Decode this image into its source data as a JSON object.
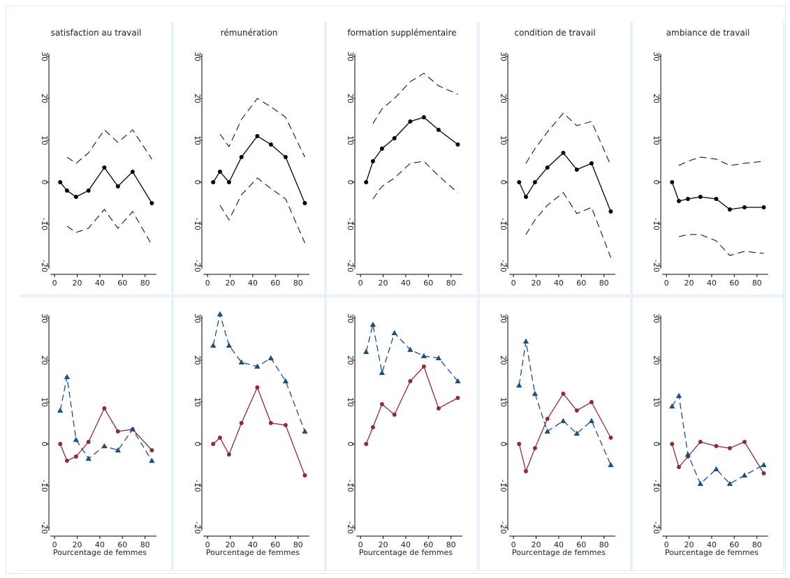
{
  "colors": {
    "black_series": "#000000",
    "red_series": "#8e2a3a",
    "blue_series": "#1f4e79",
    "frame_background": "#eaf1f5",
    "plot_background": "#ffffff"
  },
  "x_ticks": [
    "0",
    "20",
    "40",
    "60",
    "80"
  ],
  "y_ticks": [
    "-20",
    "-10",
    "0",
    "10",
    "20",
    "30"
  ],
  "xlabel": "Pourcentage de femmes",
  "chart_data": [
    {
      "type": "line",
      "row": 1,
      "title": "satisfaction au travail",
      "xlim": [
        -5,
        95
      ],
      "ylim": [
        -20,
        30
      ],
      "series": [
        {
          "style": "solid-markers",
          "color": "#000000",
          "x": [
            5,
            11,
            19,
            30,
            44,
            56,
            69,
            86
          ],
          "y": [
            0,
            -2,
            -3.5,
            -2,
            3.5,
            -1,
            2.5,
            -5
          ]
        },
        {
          "style": "dashed",
          "color": "#000000",
          "x": [
            11,
            19,
            30,
            44,
            56,
            69,
            86
          ],
          "y": [
            6,
            4.5,
            7,
            12.5,
            9.5,
            12.5,
            5.5
          ]
        },
        {
          "style": "dashed",
          "color": "#000000",
          "x": [
            11,
            19,
            30,
            44,
            56,
            69,
            86
          ],
          "y": [
            -10.5,
            -12,
            -11,
            -6.5,
            -11,
            -7,
            -15
          ]
        }
      ]
    },
    {
      "type": "line",
      "row": 1,
      "title": "rémunération",
      "xlim": [
        -5,
        95
      ],
      "ylim": [
        -20,
        30
      ],
      "series": [
        {
          "style": "solid-markers",
          "color": "#000000",
          "x": [
            5,
            11,
            19,
            30,
            44,
            56,
            69,
            86
          ],
          "y": [
            0,
            2.5,
            0,
            6,
            11,
            9,
            6,
            -5
          ]
        },
        {
          "style": "dashed",
          "color": "#000000",
          "x": [
            11,
            19,
            30,
            44,
            56,
            69,
            86
          ],
          "y": [
            11.5,
            8.5,
            15,
            20,
            18,
            15.5,
            6
          ]
        },
        {
          "style": "dashed",
          "color": "#000000",
          "x": [
            11,
            19,
            30,
            44,
            56,
            69,
            86
          ],
          "y": [
            -5.5,
            -9,
            -3,
            1,
            -1.5,
            -4,
            -14.5
          ]
        }
      ]
    },
    {
      "type": "line",
      "row": 1,
      "title": "formation supplémentaire",
      "xlim": [
        -5,
        95
      ],
      "ylim": [
        -20,
        30
      ],
      "series": [
        {
          "style": "solid-markers",
          "color": "#000000",
          "x": [
            5,
            11,
            19,
            30,
            44,
            56,
            69,
            86
          ],
          "y": [
            0,
            5,
            8,
            10.5,
            14.5,
            15.5,
            12.5,
            9
          ]
        },
        {
          "style": "dashed",
          "color": "#000000",
          "x": [
            11,
            19,
            30,
            44,
            56,
            69,
            86
          ],
          "y": [
            14,
            17.5,
            20,
            24,
            26,
            23,
            21
          ]
        },
        {
          "style": "dashed",
          "color": "#000000",
          "x": [
            11,
            19,
            30,
            44,
            56,
            69,
            86
          ],
          "y": [
            -4,
            -1,
            1,
            4.5,
            5,
            1.5,
            -2.5
          ]
        }
      ]
    },
    {
      "type": "line",
      "row": 1,
      "title": "condition de travail",
      "xlim": [
        -5,
        95
      ],
      "ylim": [
        -20,
        30
      ],
      "series": [
        {
          "style": "solid-markers",
          "color": "#000000",
          "x": [
            5,
            11,
            19,
            30,
            44,
            56,
            69,
            86
          ],
          "y": [
            0,
            -3.5,
            0,
            3.5,
            7,
            3,
            4.5,
            -7
          ]
        },
        {
          "style": "dashed",
          "color": "#000000",
          "x": [
            11,
            19,
            30,
            44,
            56,
            69,
            86
          ],
          "y": [
            4.5,
            8,
            12,
            16.5,
            13.5,
            14.5,
            4
          ]
        },
        {
          "style": "dashed",
          "color": "#000000",
          "x": [
            11,
            19,
            30,
            44,
            56,
            69,
            86
          ],
          "y": [
            -12.5,
            -9,
            -5.5,
            -2.5,
            -7.5,
            -6,
            -18
          ]
        }
      ]
    },
    {
      "type": "line",
      "row": 1,
      "title": "ambiance de travail",
      "xlim": [
        -5,
        95
      ],
      "ylim": [
        -20,
        30
      ],
      "series": [
        {
          "style": "solid-markers",
          "color": "#000000",
          "x": [
            5,
            11,
            19,
            30,
            44,
            56,
            69,
            86
          ],
          "y": [
            0,
            -4.5,
            -4,
            -3.5,
            -4,
            -6.5,
            -6,
            -6
          ]
        },
        {
          "style": "dashed",
          "color": "#000000",
          "x": [
            11,
            19,
            30,
            44,
            56,
            69,
            86
          ],
          "y": [
            4,
            5,
            6,
            5.5,
            4,
            4.5,
            5
          ]
        },
        {
          "style": "dashed",
          "color": "#000000",
          "x": [
            11,
            19,
            30,
            44,
            56,
            69,
            86
          ],
          "y": [
            -13,
            -12.5,
            -12.5,
            -14,
            -17.5,
            -16.5,
            -17
          ]
        }
      ]
    },
    {
      "type": "line",
      "row": 2,
      "title": "",
      "xlim": [
        -5,
        95
      ],
      "ylim": [
        -20,
        30
      ],
      "series": [
        {
          "style": "red-circles",
          "color": "#8e2a3a",
          "x": [
            5,
            11,
            19,
            30,
            44,
            56,
            69,
            86
          ],
          "y": [
            0,
            -4,
            -3,
            0.5,
            8.5,
            3,
            3.5,
            -1.5
          ]
        },
        {
          "style": "blue-triangles",
          "color": "#1f4e79",
          "x": [
            5,
            11,
            19,
            30,
            44,
            56,
            69,
            86
          ],
          "y": [
            8,
            16,
            1,
            -3.5,
            -0.5,
            -1.5,
            3.5,
            -4
          ]
        }
      ]
    },
    {
      "type": "line",
      "row": 2,
      "title": "",
      "xlim": [
        -5,
        95
      ],
      "ylim": [
        -20,
        30
      ],
      "series": [
        {
          "style": "red-circles",
          "color": "#8e2a3a",
          "x": [
            5,
            11,
            19,
            30,
            44,
            56,
            69,
            86
          ],
          "y": [
            0,
            1.5,
            -2.5,
            5,
            13.5,
            5,
            4.5,
            -7.5
          ]
        },
        {
          "style": "blue-triangles",
          "color": "#1f4e79",
          "x": [
            5,
            11,
            19,
            30,
            44,
            56,
            69,
            86
          ],
          "y": [
            23.5,
            31,
            23.5,
            19.5,
            18.5,
            20.5,
            15,
            3
          ]
        }
      ]
    },
    {
      "type": "line",
      "row": 2,
      "title": "",
      "xlim": [
        -5,
        95
      ],
      "ylim": [
        -20,
        30
      ],
      "series": [
        {
          "style": "red-circles",
          "color": "#8e2a3a",
          "x": [
            5,
            11,
            19,
            30,
            44,
            56,
            69,
            86
          ],
          "y": [
            0,
            4,
            9.5,
            7,
            15,
            18.5,
            8.5,
            11
          ]
        },
        {
          "style": "blue-triangles",
          "color": "#1f4e79",
          "x": [
            5,
            11,
            19,
            30,
            44,
            56,
            69,
            86
          ],
          "y": [
            22,
            28.5,
            17,
            26.5,
            22.5,
            21,
            20.5,
            15
          ]
        }
      ]
    },
    {
      "type": "line",
      "row": 2,
      "title": "",
      "xlim": [
        -5,
        95
      ],
      "ylim": [
        -20,
        30
      ],
      "series": [
        {
          "style": "red-circles",
          "color": "#8e2a3a",
          "x": [
            5,
            11,
            19,
            30,
            44,
            56,
            69,
            86
          ],
          "y": [
            0,
            -6.5,
            -1,
            6,
            12,
            8,
            10,
            1.5
          ]
        },
        {
          "style": "blue-triangles",
          "color": "#1f4e79",
          "x": [
            5,
            11,
            19,
            30,
            44,
            56,
            69,
            86
          ],
          "y": [
            14,
            24.5,
            12,
            3,
            5.5,
            2.5,
            5.5,
            -5
          ]
        }
      ]
    },
    {
      "type": "line",
      "row": 2,
      "title": "",
      "xlim": [
        -5,
        95
      ],
      "ylim": [
        -20,
        30
      ],
      "series": [
        {
          "style": "red-circles",
          "color": "#8e2a3a",
          "x": [
            5,
            11,
            19,
            30,
            44,
            56,
            69,
            86
          ],
          "y": [
            0,
            -5.5,
            -3,
            0.5,
            -0.5,
            -1,
            0.5,
            -7
          ]
        },
        {
          "style": "blue-triangles",
          "color": "#1f4e79",
          "x": [
            5,
            11,
            19,
            30,
            44,
            56,
            69,
            86
          ],
          "y": [
            9,
            11.5,
            -2.5,
            -9.5,
            -6,
            -9.5,
            -7.5,
            -5
          ]
        }
      ]
    }
  ]
}
